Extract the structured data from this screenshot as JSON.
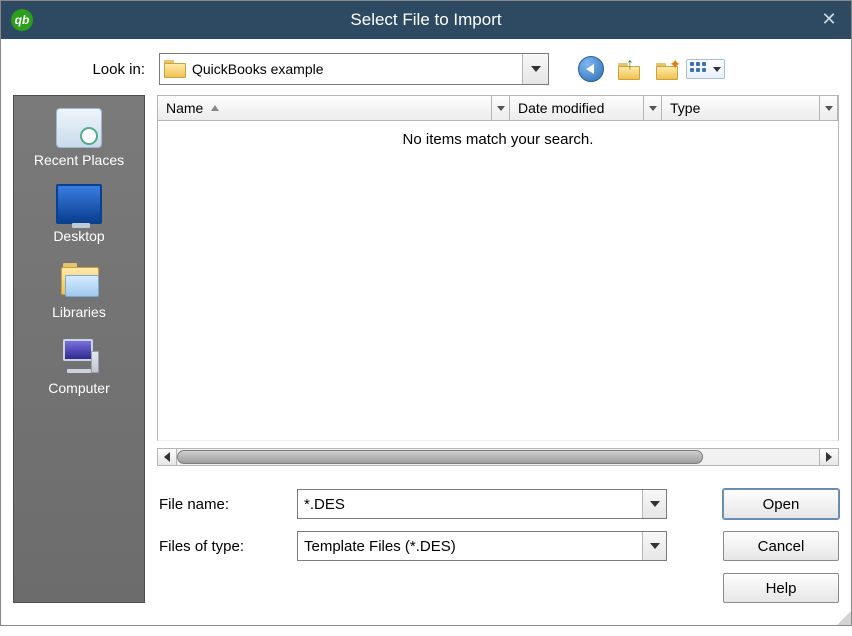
{
  "colors": {
    "titlebar_bg": "#2e4a63",
    "titlebar_text": "#ffffff",
    "sidebar_bg": "#6f6f6f",
    "button_border": "#8a8a8a",
    "accent": "#4a90d9",
    "qb_green": "#2ca01c"
  },
  "title": "Select File to Import",
  "lookin_label": "Look in:",
  "lookin_value": "QuickBooks example",
  "nav_icons": {
    "back": "back-icon",
    "up": "up-one-level-icon",
    "new_folder": "new-folder-icon",
    "views": "views-menu-icon"
  },
  "sidebar": {
    "items": [
      {
        "label": "Recent Places",
        "name": "sidebar-item-recent-places"
      },
      {
        "label": "Desktop",
        "name": "sidebar-item-desktop"
      },
      {
        "label": "Libraries",
        "name": "sidebar-item-libraries"
      },
      {
        "label": "Computer",
        "name": "sidebar-item-computer"
      }
    ]
  },
  "columns": {
    "name": {
      "label": "Name",
      "sorted": "asc"
    },
    "date": {
      "label": "Date modified"
    },
    "type": {
      "label": "Type"
    }
  },
  "empty_message": "No items match your search.",
  "file_name_label": "File name:",
  "file_name_value": "*.DES",
  "file_type_label": "Files of type:",
  "file_type_value": "Template Files (*.DES)",
  "buttons": {
    "open": "Open",
    "cancel": "Cancel",
    "help": "Help"
  }
}
